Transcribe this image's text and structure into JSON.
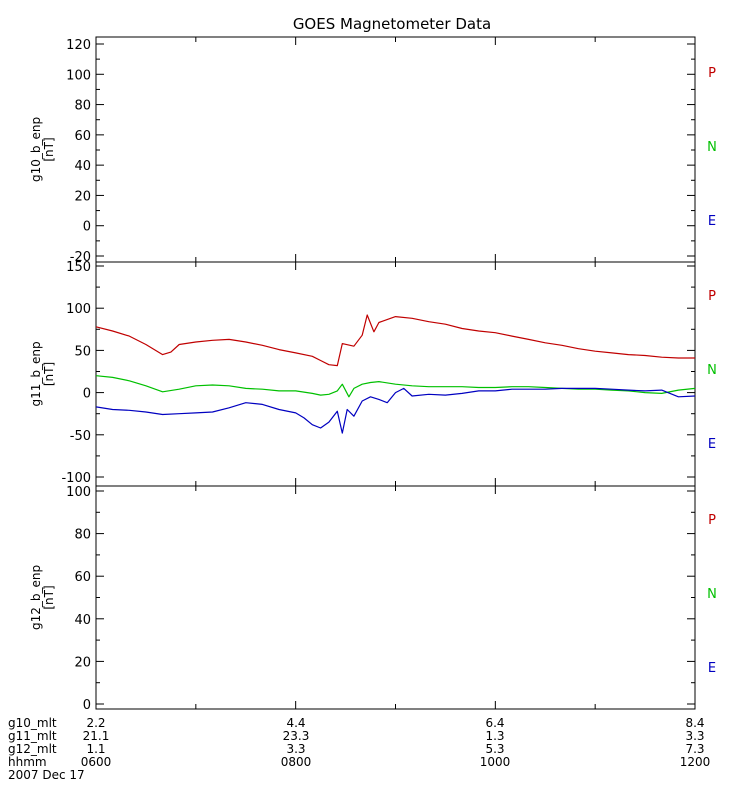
{
  "chart_data": {
    "type": "line",
    "title": "GOES Magnetometer Data",
    "x_axis": {
      "start": "0600",
      "end": "1200",
      "unit": "hhmm"
    },
    "panels": [
      {
        "ylabel": "g10_b_enp",
        "yunit": "[nT]",
        "ylim": [
          -20,
          120
        ],
        "yticks": [
          -20,
          0,
          20,
          40,
          60,
          80,
          100,
          120
        ],
        "tags": [
          {
            "label": "P",
            "color": "#c00000"
          },
          {
            "label": "N",
            "color": "#00c000"
          },
          {
            "label": "E",
            "color": "#0000c0"
          }
        ],
        "series": []
      },
      {
        "ylabel": "g11_b_enp",
        "yunit": "[nT]",
        "ylim": [
          -100,
          150
        ],
        "yticks": [
          -100,
          -50,
          0,
          50,
          100,
          150
        ],
        "tags": [
          {
            "label": "P",
            "color": "#c00000"
          },
          {
            "label": "N",
            "color": "#00c000"
          },
          {
            "label": "E",
            "color": "#0000c0"
          }
        ],
        "series": [
          {
            "name": "P",
            "color": "#c00000",
            "points": [
              [
                "0600",
                78
              ],
              [
                "0610",
                73
              ],
              [
                "0620",
                67
              ],
              [
                "0630",
                57
              ],
              [
                "0640",
                45
              ],
              [
                "0645",
                48
              ],
              [
                "0650",
                57
              ],
              [
                "0700",
                60
              ],
              [
                "0710",
                62
              ],
              [
                "0720",
                63
              ],
              [
                "0730",
                60
              ],
              [
                "0740",
                56
              ],
              [
                "0750",
                51
              ],
              [
                "0800",
                47
              ],
              [
                "0810",
                43
              ],
              [
                "0815",
                38
              ],
              [
                "0820",
                33
              ],
              [
                "0825",
                32
              ],
              [
                "0828",
                58
              ],
              [
                "0835",
                55
              ],
              [
                "0840",
                68
              ],
              [
                "0843",
                92
              ],
              [
                "0847",
                72
              ],
              [
                "0850",
                83
              ],
              [
                "0900",
                90
              ],
              [
                "0910",
                88
              ],
              [
                "0920",
                84
              ],
              [
                "0930",
                81
              ],
              [
                "0940",
                76
              ],
              [
                "0950",
                73
              ],
              [
                "1000",
                71
              ],
              [
                "1010",
                67
              ],
              [
                "1020",
                63
              ],
              [
                "1030",
                59
              ],
              [
                "1040",
                56
              ],
              [
                "1050",
                52
              ],
              [
                "1100",
                49
              ],
              [
                "1110",
                47
              ],
              [
                "1120",
                45
              ],
              [
                "1130",
                44
              ],
              [
                "1140",
                42
              ],
              [
                "1150",
                41
              ],
              [
                "1200",
                41
              ]
            ]
          },
          {
            "name": "N",
            "color": "#00c000",
            "points": [
              [
                "0600",
                20
              ],
              [
                "0610",
                18
              ],
              [
                "0620",
                14
              ],
              [
                "0630",
                8
              ],
              [
                "0640",
                1
              ],
              [
                "0650",
                4
              ],
              [
                "0700",
                8
              ],
              [
                "0710",
                9
              ],
              [
                "0720",
                8
              ],
              [
                "0730",
                5
              ],
              [
                "0740",
                4
              ],
              [
                "0750",
                2
              ],
              [
                "0800",
                2
              ],
              [
                "0810",
                -1
              ],
              [
                "0815",
                -3
              ],
              [
                "0820",
                -2
              ],
              [
                "0825",
                2
              ],
              [
                "0828",
                10
              ],
              [
                "0832",
                -5
              ],
              [
                "0835",
                5
              ],
              [
                "0840",
                10
              ],
              [
                "0845",
                12
              ],
              [
                "0850",
                13
              ],
              [
                "0900",
                10
              ],
              [
                "0910",
                8
              ],
              [
                "0920",
                7
              ],
              [
                "0930",
                7
              ],
              [
                "0940",
                7
              ],
              [
                "0950",
                6
              ],
              [
                "1000",
                6
              ],
              [
                "1010",
                7
              ],
              [
                "1020",
                7
              ],
              [
                "1030",
                6
              ],
              [
                "1040",
                5
              ],
              [
                "1050",
                4
              ],
              [
                "1100",
                4
              ],
              [
                "1110",
                3
              ],
              [
                "1120",
                2
              ],
              [
                "1130",
                0
              ],
              [
                "1140",
                -1
              ],
              [
                "1150",
                3
              ],
              [
                "1200",
                5
              ]
            ]
          },
          {
            "name": "E",
            "color": "#0000c0",
            "points": [
              [
                "0600",
                -17
              ],
              [
                "0610",
                -20
              ],
              [
                "0620",
                -21
              ],
              [
                "0630",
                -23
              ],
              [
                "0640",
                -26
              ],
              [
                "0650",
                -25
              ],
              [
                "0700",
                -24
              ],
              [
                "0710",
                -23
              ],
              [
                "0720",
                -18
              ],
              [
                "0730",
                -12
              ],
              [
                "0740",
                -14
              ],
              [
                "0750",
                -20
              ],
              [
                "0800",
                -24
              ],
              [
                "0805",
                -30
              ],
              [
                "0810",
                -38
              ],
              [
                "0815",
                -42
              ],
              [
                "0820",
                -35
              ],
              [
                "0825",
                -22
              ],
              [
                "0828",
                -48
              ],
              [
                "0831",
                -20
              ],
              [
                "0835",
                -28
              ],
              [
                "0840",
                -10
              ],
              [
                "0845",
                -5
              ],
              [
                "0850",
                -8
              ],
              [
                "0855",
                -12
              ],
              [
                "0900",
                0
              ],
              [
                "0905",
                5
              ],
              [
                "0910",
                -4
              ],
              [
                "0920",
                -2
              ],
              [
                "0930",
                -3
              ],
              [
                "0940",
                -1
              ],
              [
                "0950",
                2
              ],
              [
                "1000",
                2
              ],
              [
                "1010",
                4
              ],
              [
                "1020",
                4
              ],
              [
                "1030",
                4
              ],
              [
                "1040",
                5
              ],
              [
                "1050",
                5
              ],
              [
                "1100",
                5
              ],
              [
                "1110",
                4
              ],
              [
                "1120",
                3
              ],
              [
                "1130",
                2
              ],
              [
                "1140",
                3
              ],
              [
                "1150",
                -5
              ],
              [
                "1200",
                -4
              ]
            ]
          }
        ]
      },
      {
        "ylabel": "g12_b_enp",
        "yunit": "[nT]",
        "ylim": [
          0,
          100
        ],
        "yticks": [
          0,
          20,
          40,
          60,
          80,
          100
        ],
        "tags": [
          {
            "label": "P",
            "color": "#c00000"
          },
          {
            "label": "N",
            "color": "#00c000"
          },
          {
            "label": "E",
            "color": "#0000c0"
          }
        ],
        "series": []
      }
    ]
  },
  "footer": {
    "rows": [
      {
        "label": "g10_mlt",
        "values": [
          "2.2",
          "4.4",
          "6.4",
          "8.4"
        ]
      },
      {
        "label": "g11_mlt",
        "values": [
          "21.1",
          "23.3",
          "1.3",
          "3.3"
        ]
      },
      {
        "label": "g12_mlt",
        "values": [
          "1.1",
          "3.3",
          "5.3",
          "7.3"
        ]
      },
      {
        "label": "hhmm",
        "values": [
          "0600",
          "0800",
          "1000",
          "1200"
        ]
      }
    ],
    "date": "2007 Dec 17"
  }
}
